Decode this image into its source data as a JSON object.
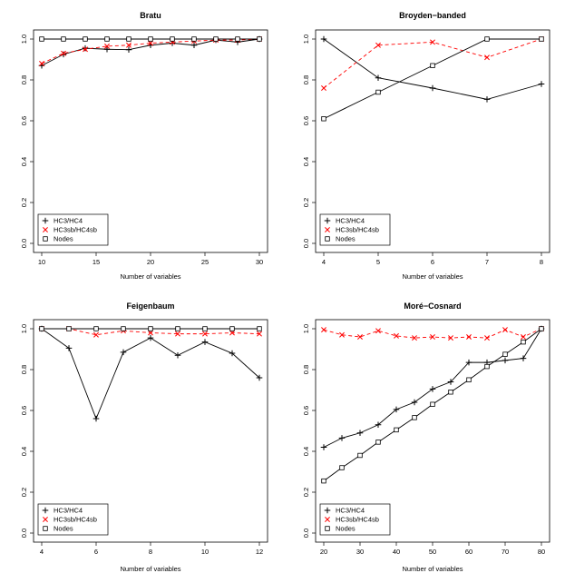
{
  "chart_data": [
    {
      "type": "line",
      "title": "Bratu",
      "xlabel": "Number of variables",
      "ylabel": "",
      "xlim": [
        10,
        30
      ],
      "ylim": [
        0.0,
        1.0
      ],
      "xticks": [
        "10",
        "15",
        "20",
        "25",
        "30"
      ],
      "yticks": [
        "0.0",
        "0.2",
        "0.4",
        "0.6",
        "0.8",
        "1.0"
      ],
      "legend_position": "bottom-left",
      "x": [
        10,
        12,
        14,
        16,
        18,
        20,
        22,
        24,
        26,
        28,
        30
      ],
      "series": [
        {
          "name": "HC3/HC4",
          "marker": "plus",
          "dash": "solid",
          "color": "#000000",
          "values": [
            0.87,
            0.925,
            0.955,
            0.95,
            0.948,
            0.97,
            0.98,
            0.97,
            0.995,
            0.985,
            1.0
          ]
        },
        {
          "name": "HC3sb/HC4sb",
          "marker": "cross",
          "dash": "dashed",
          "color": "#ff0000",
          "values": [
            0.88,
            0.93,
            0.95,
            0.965,
            0.97,
            0.98,
            0.985,
            0.99,
            0.995,
            0.995,
            1.0
          ]
        },
        {
          "name": "Nodes",
          "marker": "square",
          "dash": "solid",
          "color": "#000000",
          "values": [
            1.0,
            1.0,
            1.0,
            1.0,
            1.0,
            1.0,
            1.0,
            1.0,
            1.0,
            1.0,
            1.0
          ]
        }
      ]
    },
    {
      "type": "line",
      "title": "Broyden−banded",
      "xlabel": "Number of variables",
      "ylabel": "",
      "xlim": [
        4,
        8
      ],
      "ylim": [
        0.0,
        1.0
      ],
      "xticks": [
        "4",
        "5",
        "6",
        "7",
        "8"
      ],
      "yticks": [
        "0.0",
        "0.2",
        "0.4",
        "0.6",
        "0.8",
        "1.0"
      ],
      "legend_position": "bottom-left",
      "x": [
        4,
        5,
        6,
        7,
        8
      ],
      "series": [
        {
          "name": "HC3/HC4",
          "marker": "plus",
          "dash": "solid",
          "color": "#000000",
          "values": [
            1.0,
            0.81,
            0.76,
            0.705,
            0.78
          ]
        },
        {
          "name": "HC3sb/HC4sb",
          "marker": "cross",
          "dash": "dashed",
          "color": "#ff0000",
          "values": [
            0.76,
            0.97,
            0.985,
            0.91,
            1.0
          ]
        },
        {
          "name": "Nodes",
          "marker": "square",
          "dash": "solid",
          "color": "#000000",
          "values": [
            0.61,
            0.74,
            0.87,
            1.0,
            1.0
          ]
        }
      ]
    },
    {
      "type": "line",
      "title": "Feigenbaum",
      "xlabel": "Number of variables",
      "ylabel": "",
      "xlim": [
        4,
        12
      ],
      "ylim": [
        0.0,
        1.0
      ],
      "xticks": [
        "4",
        "6",
        "8",
        "10",
        "12"
      ],
      "yticks": [
        "0.0",
        "0.2",
        "0.4",
        "0.6",
        "0.8",
        "1.0"
      ],
      "legend_position": "bottom-left",
      "x": [
        4,
        5,
        6,
        7,
        8,
        9,
        10,
        11,
        12
      ],
      "series": [
        {
          "name": "HC3/HC4",
          "marker": "plus",
          "dash": "solid",
          "color": "#000000",
          "values": [
            1.0,
            0.905,
            0.56,
            0.885,
            0.955,
            0.87,
            0.935,
            0.88,
            0.76
          ]
        },
        {
          "name": "HC3sb/HC4sb",
          "marker": "cross",
          "dash": "dashed",
          "color": "#ff0000",
          "values": [
            1.0,
            1.0,
            0.97,
            0.99,
            0.98,
            0.975,
            0.975,
            0.98,
            0.975
          ]
        },
        {
          "name": "Nodes",
          "marker": "square",
          "dash": "solid",
          "color": "#000000",
          "values": [
            1.0,
            1.0,
            1.0,
            1.0,
            1.0,
            1.0,
            1.0,
            1.0,
            1.0
          ]
        }
      ]
    },
    {
      "type": "line",
      "title": "Moré−Cosnard",
      "xlabel": "Number of variables",
      "ylabel": "",
      "xlim": [
        20,
        80
      ],
      "ylim": [
        0.0,
        1.0
      ],
      "xticks": [
        "20",
        "30",
        "40",
        "50",
        "60",
        "70",
        "80"
      ],
      "yticks": [
        "0.0",
        "0.2",
        "0.4",
        "0.6",
        "0.8",
        "1.0"
      ],
      "legend_position": "bottom-left",
      "x": [
        20,
        25,
        30,
        35,
        40,
        45,
        50,
        55,
        60,
        65,
        70,
        75,
        80
      ],
      "series": [
        {
          "name": "HC3/HC4",
          "marker": "plus",
          "dash": "solid",
          "color": "#000000",
          "values": [
            0.42,
            0.465,
            0.49,
            0.53,
            0.605,
            0.64,
            0.705,
            0.74,
            0.835,
            0.835,
            0.845,
            0.855,
            1.0
          ]
        },
        {
          "name": "HC3sb/HC4sb",
          "marker": "cross",
          "dash": "dashed",
          "color": "#ff0000",
          "values": [
            0.995,
            0.97,
            0.96,
            0.99,
            0.965,
            0.955,
            0.96,
            0.955,
            0.96,
            0.955,
            0.995,
            0.96,
            1.0
          ]
        },
        {
          "name": "Nodes",
          "marker": "square",
          "dash": "solid",
          "color": "#000000",
          "values": [
            0.255,
            0.32,
            0.38,
            0.445,
            0.505,
            0.565,
            0.63,
            0.69,
            0.75,
            0.815,
            0.875,
            0.935,
            1.0
          ]
        }
      ]
    }
  ]
}
